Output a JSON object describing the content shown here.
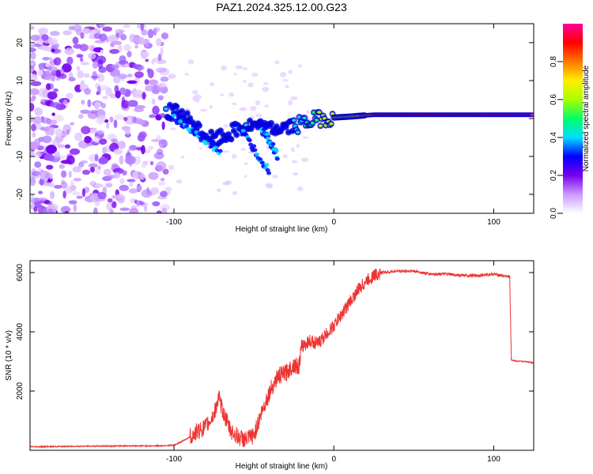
{
  "title": "PAZ1.2024.325.12.00.G23",
  "chart_data": [
    {
      "type": "heatmap",
      "xlabel": "Height of straight line (km)",
      "ylabel": "Frequency (Hz)",
      "xlim": [
        -190,
        125
      ],
      "ylim": [
        -25,
        25
      ],
      "x_ticks": [
        -100,
        0,
        100
      ],
      "x_tick_labels": [
        "-100",
        "0",
        "100"
      ],
      "y_ticks": [
        -20,
        -10,
        0,
        10,
        20
      ],
      "y_tick_labels": [
        "-20",
        "-10",
        "0",
        "10",
        "20"
      ],
      "colorbar": {
        "label": "Normalized spectral amplitude",
        "range": [
          0,
          1
        ],
        "ticks": [
          0.0,
          0.2,
          0.4,
          0.6,
          0.8
        ],
        "tick_labels": [
          "0.0",
          "0.2",
          "0.4",
          "0.6",
          "0.8"
        ],
        "colors": [
          "#ffffff",
          "#cc99ff",
          "#7700ee",
          "#0000ff",
          "#00ddff",
          "#00ff66",
          "#aaff00",
          "#ffee00",
          "#ff7700",
          "#ff0000",
          "#ff0099"
        ]
      },
      "ridge": {
        "description_points": [
          {
            "x": -105,
            "freq": 2,
            "amp": 0.35
          },
          {
            "x": -95,
            "freq": 1,
            "amp": 0.3
          },
          {
            "x": -85,
            "freq": -3,
            "amp": 0.3
          },
          {
            "x": -75,
            "freq": -6,
            "amp": 0.3
          },
          {
            "x": -55,
            "freq": -2,
            "amp": 0.35
          },
          {
            "x": -40,
            "freq": -3,
            "amp": 0.3
          },
          {
            "x": -25,
            "freq": -2,
            "amp": 0.35
          },
          {
            "x": -10,
            "freq": 0,
            "amp": 0.55
          },
          {
            "x": 10,
            "freq": 0.5,
            "amp": 0.65
          },
          {
            "x": 25,
            "freq": 1,
            "amp": 0.85
          },
          {
            "x": 125,
            "freq": 1,
            "amp": 1.0
          }
        ]
      },
      "grid": false
    },
    {
      "type": "line",
      "xlabel": "Height of straight line (km)",
      "ylabel": "SNR (10 * v/v)",
      "xlim": [
        -190,
        125
      ],
      "ylim": [
        0,
        6400
      ],
      "x_ticks": [
        -100,
        0,
        100
      ],
      "x_tick_labels": [
        "-100",
        "0",
        "100"
      ],
      "y_ticks": [
        2000,
        4000,
        6000
      ],
      "y_tick_labels": [
        "2000",
        "4000",
        "6000"
      ],
      "series": [
        {
          "color": "#ee3333",
          "x": [
            -190,
            -170,
            -150,
            -130,
            -110,
            -100,
            -95,
            -90,
            -85,
            -80,
            -75,
            -72,
            -70,
            -65,
            -60,
            -55,
            -50,
            -45,
            -40,
            -35,
            -30,
            -25,
            -22,
            -20,
            -15,
            -10,
            -5,
            0,
            5,
            10,
            15,
            20,
            25,
            30,
            40,
            50,
            60,
            70,
            80,
            90,
            100,
            105,
            110,
            111,
            115,
            120,
            125
          ],
          "y": [
            120,
            130,
            140,
            150,
            150,
            170,
            300,
            450,
            650,
            800,
            1200,
            1800,
            1400,
            700,
            450,
            350,
            500,
            1300,
            2000,
            2500,
            2600,
            2900,
            2800,
            3500,
            3700,
            3600,
            3900,
            4200,
            4600,
            5000,
            5400,
            5700,
            5900,
            6000,
            6050,
            6050,
            5950,
            5950,
            5900,
            5900,
            5950,
            5900,
            5850,
            3050,
            3000,
            3000,
            2950
          ]
        }
      ],
      "grid": false
    }
  ]
}
